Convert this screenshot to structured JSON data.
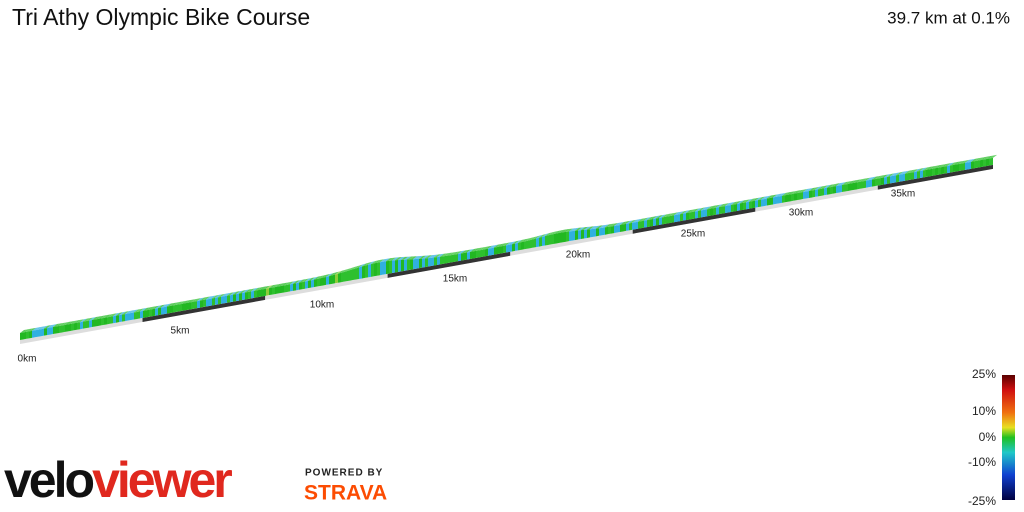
{
  "header": {
    "title": "Tri Athy Olympic Bike Course",
    "summary": "39.7 km at 0.1%"
  },
  "distance_markers": [
    "0km",
    "5km",
    "10km",
    "15km",
    "20km",
    "25km",
    "30km",
    "35km"
  ],
  "gradient_legend": [
    "25%",
    "10%",
    "0%",
    "-10%",
    "-25%"
  ],
  "branding": {
    "logo_first": "velo",
    "logo_second": "viewer",
    "powered_by": "POWERED BY",
    "partner": "STRAVA"
  }
}
